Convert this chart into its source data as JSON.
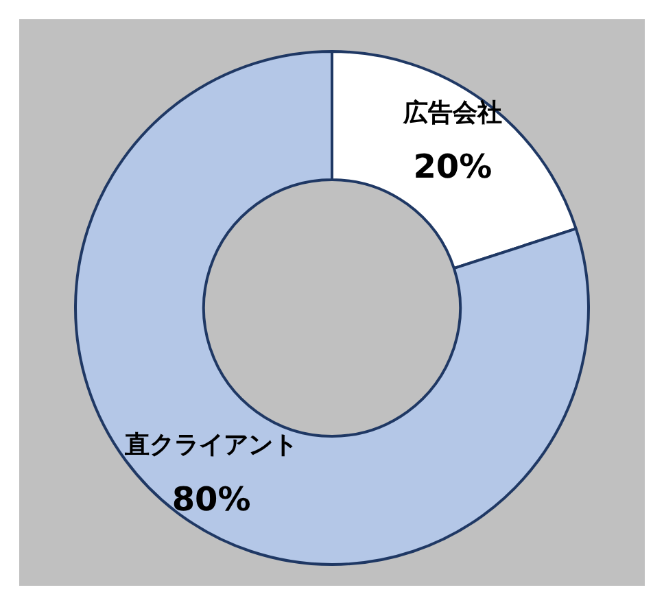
{
  "chart_data": {
    "type": "donut",
    "categories": [
      "広告会社",
      "直クライアント"
    ],
    "values": [
      20,
      80
    ],
    "colors": [
      "#ffffff",
      "#b4c7e7"
    ],
    "value_labels": [
      "20%",
      "80%"
    ],
    "legend": false
  }
}
